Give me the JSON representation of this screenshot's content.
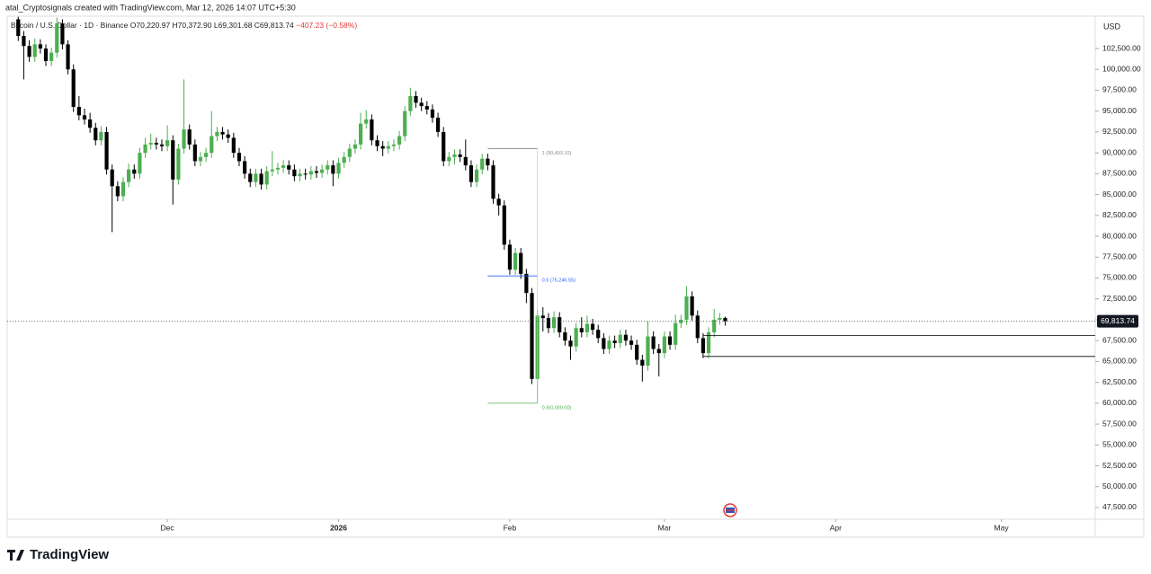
{
  "header": {
    "attribution": "atal_Cryptosignals created with TradingView.com, Mar 12, 2026 14:07 UTC+5:30"
  },
  "footer": {
    "logo": "TradingView"
  },
  "chart_data": {
    "type": "candlestick",
    "symbol": "Bitcoin / U.S. Dollar · 1D · Binance",
    "ohlc_labels": [
      "O70,220.97",
      "H70,372.90",
      "L69,301.68",
      "C69,813.74",
      "−407.23 (−0.58%)"
    ],
    "currency": "USD",
    "up_color": "#4caf50",
    "down_color": "#000000",
    "candles": [
      [
        106000,
        106300,
        103400,
        104000
      ],
      [
        104000,
        104600,
        98800,
        102800
      ],
      [
        102800,
        103500,
        100900,
        101500
      ],
      [
        101500,
        103700,
        100900,
        103000
      ],
      [
        103000,
        103600,
        101900,
        102500
      ],
      [
        102500,
        103000,
        100400,
        101000
      ],
      [
        101000,
        102600,
        100400,
        102000
      ],
      [
        102000,
        106200,
        101400,
        105500
      ],
      [
        105500,
        106000,
        102400,
        103000
      ],
      [
        103000,
        103500,
        99400,
        100000
      ],
      [
        100000,
        100600,
        94900,
        95500
      ],
      [
        95500,
        96800,
        93900,
        94500
      ],
      [
        94500,
        95300,
        93400,
        94000
      ],
      [
        94000,
        94800,
        92400,
        93000
      ],
      [
        93000,
        93600,
        90900,
        91500
      ],
      [
        91500,
        93200,
        90900,
        92500
      ],
      [
        92500,
        93100,
        87400,
        88000
      ],
      [
        88000,
        88600,
        80500,
        86000
      ],
      [
        86000,
        86600,
        84200,
        84800
      ],
      [
        84800,
        87100,
        84200,
        86500
      ],
      [
        86500,
        88700,
        85900,
        88000
      ],
      [
        88000,
        88600,
        86900,
        87500
      ],
      [
        87500,
        90600,
        86900,
        90000
      ],
      [
        90000,
        91800,
        89400,
        91000
      ],
      [
        91000,
        92300,
        90400,
        91200
      ],
      [
        91200,
        91800,
        90400,
        91000
      ],
      [
        91000,
        91600,
        90200,
        90800
      ],
      [
        90800,
        93300,
        90200,
        91500
      ],
      [
        91500,
        92100,
        83800,
        86800
      ],
      [
        86800,
        91100,
        86200,
        90500
      ],
      [
        90500,
        98800,
        89900,
        92800
      ],
      [
        92800,
        93400,
        90400,
        91000
      ],
      [
        91000,
        91600,
        88400,
        89000
      ],
      [
        89000,
        90100,
        88400,
        89500
      ],
      [
        89500,
        90600,
        88900,
        90000
      ],
      [
        90000,
        95000,
        89400,
        92000
      ],
      [
        92000,
        93100,
        91400,
        92500
      ],
      [
        92500,
        93100,
        91600,
        92200
      ],
      [
        92200,
        92800,
        91200,
        91800
      ],
      [
        91800,
        92400,
        89400,
        90000
      ],
      [
        90000,
        90600,
        88400,
        89000
      ],
      [
        89000,
        89600,
        86900,
        87500
      ],
      [
        87500,
        88100,
        85900,
        86500
      ],
      [
        86500,
        88100,
        85900,
        87500
      ],
      [
        87500,
        88100,
        85600,
        86200
      ],
      [
        86200,
        88400,
        85600,
        87800
      ],
      [
        87800,
        90200,
        87200,
        88000
      ],
      [
        88000,
        88800,
        87400,
        88200
      ],
      [
        88200,
        89100,
        87600,
        88500
      ],
      [
        88500,
        89100,
        87400,
        88000
      ],
      [
        88000,
        88600,
        86600,
        87200
      ],
      [
        87200,
        88100,
        86600,
        87500
      ],
      [
        87500,
        88100,
        86800,
        87400
      ],
      [
        87400,
        88400,
        86800,
        87800
      ],
      [
        87800,
        88400,
        87000,
        87600
      ],
      [
        87600,
        88600,
        87000,
        88000
      ],
      [
        88000,
        89100,
        87400,
        88500
      ],
      [
        88500,
        89100,
        86000,
        87500
      ],
      [
        87500,
        89400,
        86900,
        88800
      ],
      [
        88800,
        90100,
        88200,
        89500
      ],
      [
        89500,
        91100,
        88900,
        90500
      ],
      [
        90500,
        91600,
        89900,
        91000
      ],
      [
        91000,
        94800,
        90400,
        93500
      ],
      [
        93500,
        95100,
        92900,
        94000
      ],
      [
        94000,
        94600,
        90900,
        91500
      ],
      [
        91500,
        92100,
        90200,
        90800
      ],
      [
        90800,
        91400,
        89600,
        90500
      ],
      [
        90500,
        91400,
        89900,
        90800
      ],
      [
        90800,
        91600,
        90200,
        91000
      ],
      [
        91000,
        92600,
        90400,
        92000
      ],
      [
        92000,
        95600,
        91400,
        95000
      ],
      [
        95000,
        97800,
        94400,
        96800
      ],
      [
        96800,
        97400,
        95400,
        96000
      ],
      [
        96000,
        96600,
        95000,
        95600
      ],
      [
        95600,
        96200,
        94600,
        95200
      ],
      [
        95200,
        95800,
        93600,
        94200
      ],
      [
        94200,
        94800,
        91900,
        92500
      ],
      [
        92500,
        93100,
        88400,
        89000
      ],
      [
        89000,
        90100,
        88400,
        89500
      ],
      [
        89500,
        90400,
        88600,
        89800
      ],
      [
        89800,
        90400,
        88900,
        89500
      ],
      [
        89500,
        91600,
        87900,
        88500
      ],
      [
        88500,
        89100,
        85900,
        86500
      ],
      [
        86500,
        88600,
        85900,
        88000
      ],
      [
        88000,
        89900,
        87400,
        89300
      ],
      [
        89300,
        89900,
        87900,
        88500
      ],
      [
        88500,
        89100,
        83900,
        84500
      ],
      [
        84500,
        85100,
        82500,
        83700
      ],
      [
        83700,
        84300,
        78400,
        79000
      ],
      [
        79000,
        79600,
        75400,
        76000
      ],
      [
        76000,
        78600,
        75400,
        78000
      ],
      [
        78000,
        78600,
        74900,
        75500
      ],
      [
        75500,
        76100,
        72000,
        73200
      ],
      [
        73200,
        73800,
        62300,
        62900
      ],
      [
        62900,
        71200,
        60000,
        70500
      ],
      [
        70500,
        71500,
        68600,
        70200
      ],
      [
        70200,
        70800,
        68400,
        69000
      ],
      [
        69000,
        71000,
        68400,
        70300
      ],
      [
        70300,
        70900,
        67900,
        68500
      ],
      [
        68500,
        69100,
        66900,
        67500
      ],
      [
        67500,
        68100,
        65200,
        66800
      ],
      [
        66800,
        69600,
        66200,
        69000
      ],
      [
        69000,
        70300,
        67900,
        68500
      ],
      [
        68500,
        70500,
        67900,
        69500
      ],
      [
        69500,
        70100,
        68200,
        68800
      ],
      [
        68800,
        69400,
        67200,
        67800
      ],
      [
        67800,
        68400,
        65900,
        66500
      ],
      [
        66500,
        68100,
        65900,
        67500
      ],
      [
        67500,
        68100,
        66600,
        67200
      ],
      [
        67200,
        68800,
        66600,
        68200
      ],
      [
        68200,
        68800,
        66900,
        67500
      ],
      [
        67500,
        68100,
        66400,
        67000
      ],
      [
        67000,
        67600,
        64600,
        65200
      ],
      [
        65200,
        65800,
        62600,
        64500
      ],
      [
        64500,
        69800,
        63900,
        68000
      ],
      [
        68000,
        68600,
        65900,
        66500
      ],
      [
        66500,
        67100,
        63200,
        66000
      ],
      [
        66000,
        68600,
        65400,
        68000
      ],
      [
        68000,
        68600,
        66400,
        67000
      ],
      [
        67000,
        70600,
        66400,
        69600
      ],
      [
        69600,
        70600,
        69000,
        70000
      ],
      [
        70000,
        74000,
        69400,
        72800
      ],
      [
        72800,
        73400,
        69900,
        70500
      ],
      [
        70500,
        71100,
        67200,
        67800
      ],
      [
        67800,
        68400,
        65400,
        66000
      ],
      [
        66000,
        69100,
        65400,
        68500
      ],
      [
        68500,
        71300,
        67900,
        70000
      ],
      [
        70000,
        70800,
        69400,
        70220.97
      ],
      [
        70220.97,
        70372.9,
        69301.68,
        69813.74
      ]
    ],
    "last_price_label": "69,813.74",
    "xlim": [
      -2,
      195
    ],
    "xticks": [
      {
        "value": 27,
        "label": "Dec"
      },
      {
        "value": 58,
        "label": "2026"
      },
      {
        "value": 89,
        "label": "Feb"
      },
      {
        "value": 117,
        "label": "Mar"
      },
      {
        "value": 148,
        "label": "Apr"
      },
      {
        "value": 178,
        "label": "May"
      }
    ],
    "ylim": [
      46100,
      106375
    ],
    "yticks": [
      {
        "value": 47500,
        "label": "47,500.00"
      },
      {
        "value": 50000,
        "label": "50,000.00"
      },
      {
        "value": 52500,
        "label": "52,500.00"
      },
      {
        "value": 55000,
        "label": "55,000.00"
      },
      {
        "value": 57500,
        "label": "57,500.00"
      },
      {
        "value": 60000,
        "label": "60,000.00"
      },
      {
        "value": 62500,
        "label": "62,500.00"
      },
      {
        "value": 65000,
        "label": "65,000.00"
      },
      {
        "value": 67500,
        "label": "67,500.00"
      },
      {
        "value": 70000,
        "label": "70,000.00"
      },
      {
        "value": 72500,
        "label": "72,500.00"
      },
      {
        "value": 75000,
        "label": "75,000.00"
      },
      {
        "value": 77500,
        "label": "77,500.00"
      },
      {
        "value": 80000,
        "label": "80,000.00"
      },
      {
        "value": 82500,
        "label": "82,500.00"
      },
      {
        "value": 85000,
        "label": "85,000.00"
      },
      {
        "value": 87500,
        "label": "87,500.00"
      },
      {
        "value": 90000,
        "label": "90,000.00"
      },
      {
        "value": 92500,
        "label": "92,500.00"
      },
      {
        "value": 95000,
        "label": "95,000.00"
      },
      {
        "value": 97500,
        "label": "97,500.00"
      },
      {
        "value": 100000,
        "label": "100,000.00"
      },
      {
        "value": 102500,
        "label": "102,500.00"
      }
    ],
    "fib_levels": [
      {
        "value": 90493.1,
        "label": "1 (90,493.10)"
      },
      {
        "value": 75246.55,
        "label": "0.5 (75,246.55)"
      },
      {
        "value": 60000,
        "label": "0 (60,000.00)"
      }
    ],
    "horizontal_levels": [
      68100,
      65600
    ],
    "grid": false
  }
}
